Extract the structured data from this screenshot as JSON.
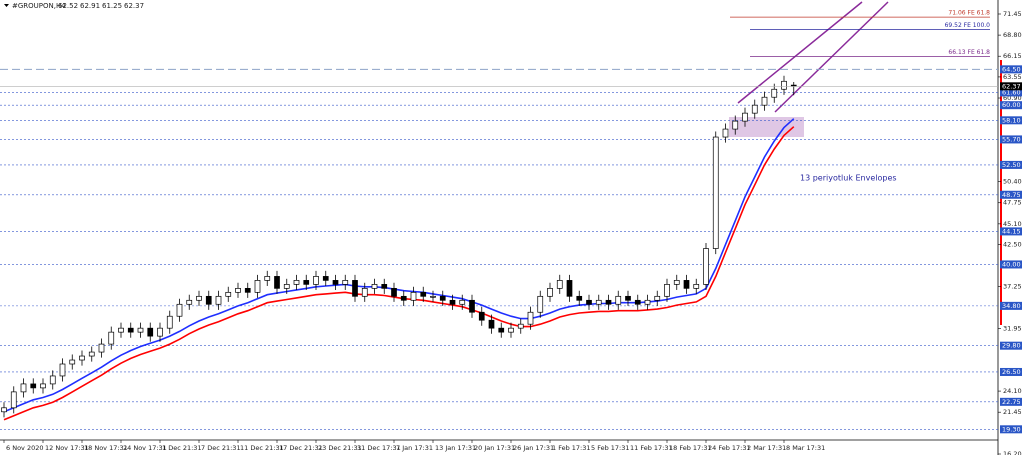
{
  "chart_data": {
    "type": "candlestick",
    "title": "#GROUPON,H4",
    "annotation": "13 periyotluk Envelopes",
    "categories": [
      "6 Nov 2020",
      null,
      null,
      null,
      "12 Nov 17:31",
      null,
      null,
      null,
      "18 Nov 17:31",
      null,
      null,
      null,
      "24 Nov 17:31",
      null,
      null,
      null,
      "1 Dec 21:31",
      null,
      null,
      null,
      "7 Dec 21:31",
      null,
      null,
      null,
      "11 Dec 21:31",
      null,
      null,
      null,
      "17 Dec 21:31",
      null,
      null,
      null,
      "23 Dec 21:31",
      null,
      null,
      null,
      "31 Dec 17:31",
      null,
      null,
      null,
      "7 Jan 17:31",
      null,
      null,
      null,
      "13 Jan 17:31",
      null,
      null,
      null,
      "20 Jan 17:31",
      null,
      null,
      null,
      "26 Jan 17:31",
      null,
      null,
      null,
      "1 Feb 17:31",
      null,
      null,
      null,
      "5 Feb 17:31",
      null,
      null,
      null,
      "11 Feb 17:31",
      null,
      null,
      null,
      "18 Feb 17:31",
      null,
      null,
      null,
      "24 Feb 17:31",
      null,
      null,
      null,
      "2 Mar 17:31",
      null,
      null,
      null,
      "8 Mar 17:31",
      null
    ],
    "open": [
      21.5,
      22,
      24,
      25,
      24.5,
      25,
      26,
      27.5,
      28,
      28.5,
      29,
      30,
      31.5,
      32,
      31.5,
      32,
      31,
      32,
      33.5,
      35,
      35.5,
      36,
      35,
      36,
      36.5,
      37,
      36.5,
      38,
      38.5,
      37,
      37.5,
      38,
      37.5,
      38.5,
      38,
      37.5,
      38,
      36,
      37,
      37.5,
      37,
      36,
      35.5,
      36.5,
      36,
      36,
      35.5,
      35,
      35.5,
      34,
      33,
      32,
      31.5,
      32,
      32.5,
      34,
      36,
      37,
      38,
      36,
      35.5,
      35,
      35.5,
      35,
      36,
      35.5,
      35,
      35.5,
      36,
      37.5,
      38,
      37,
      37.5,
      42,
      56,
      57,
      58,
      59,
      60,
      61,
      62,
      62.52
    ],
    "high": [
      22.7,
      24.7,
      25.7,
      25.7,
      25.7,
      26.7,
      28.2,
      28.7,
      29.2,
      29.7,
      30.7,
      32.2,
      32.7,
      32.7,
      32.7,
      32.7,
      32.7,
      34.2,
      35.7,
      36.2,
      36.7,
      36.7,
      36.7,
      37.2,
      37.7,
      37.7,
      38.7,
      39.2,
      39.2,
      38.2,
      38.7,
      38.7,
      39.2,
      39.2,
      38.7,
      38.7,
      38.7,
      37.7,
      38.2,
      38.2,
      37.7,
      36.7,
      37.2,
      37.2,
      36.7,
      36.7,
      36.2,
      36.2,
      36.2,
      34.7,
      33.7,
      32.7,
      32.7,
      33.2,
      34.7,
      36.7,
      37.7,
      38.7,
      38.7,
      36.7,
      36.2,
      36.2,
      36.2,
      36.7,
      36.7,
      36.2,
      36.2,
      36.7,
      38.2,
      38.7,
      38.7,
      38.2,
      42.7,
      56.7,
      57.7,
      58.7,
      59.7,
      60.7,
      61.7,
      62.7,
      63.7,
      62.91
    ],
    "low": [
      20.8,
      21.3,
      23.3,
      23.8,
      23.8,
      24.3,
      25.3,
      26.8,
      27.3,
      27.8,
      28.3,
      29.3,
      30.8,
      30.8,
      30.8,
      30.3,
      30.3,
      31.3,
      32.8,
      34.3,
      34.8,
      34.3,
      34.3,
      35.3,
      35.8,
      35.8,
      35.8,
      37.3,
      36.3,
      36.3,
      36.8,
      36.8,
      36.8,
      37.3,
      36.8,
      36.8,
      35.3,
      35.3,
      36.3,
      36.3,
      35.3,
      34.8,
      34.8,
      35.3,
      35.3,
      34.8,
      34.3,
      34.3,
      33.3,
      32.3,
      31.3,
      30.8,
      30.8,
      31.3,
      31.8,
      33.3,
      35.3,
      36.3,
      35.3,
      34.8,
      34.3,
      34.3,
      34.3,
      34.3,
      34.8,
      34.3,
      34.3,
      34.8,
      35.3,
      36.8,
      36.3,
      36.3,
      36.8,
      41.3,
      55.3,
      56.3,
      57.3,
      58.3,
      59.3,
      60.3,
      61.3,
      61.25
    ],
    "close": [
      22,
      24,
      25,
      24.5,
      25,
      26,
      27.5,
      28,
      28.5,
      29,
      30,
      31.5,
      32,
      31.5,
      32,
      31,
      32,
      33.5,
      35,
      35.5,
      36,
      35,
      36,
      36.5,
      37,
      36.5,
      38,
      38.5,
      37,
      37.5,
      38,
      37.5,
      38.5,
      38,
      37.5,
      38,
      36,
      37,
      37.5,
      37,
      36,
      35.5,
      36.5,
      36,
      36,
      35.5,
      35,
      35.5,
      34,
      33,
      32,
      31.5,
      32,
      32.5,
      34,
      36,
      37,
      38,
      36,
      35.5,
      35,
      35.5,
      35,
      36,
      35.5,
      35,
      35.5,
      36,
      37.5,
      38,
      37,
      37.5,
      42,
      56,
      57,
      58,
      59,
      60,
      61,
      62,
      63,
      62.37
    ],
    "series": [
      {
        "color": "#1f2fff",
        "values": [
          21.5,
          22,
          22.5,
          23,
          23.3,
          23.7,
          24.3,
          25,
          25.7,
          26.4,
          27.1,
          27.9,
          28.6,
          29.2,
          29.7,
          30.1,
          30.5,
          31,
          31.6,
          32.3,
          32.9,
          33.4,
          33.8,
          34.3,
          34.8,
          35.2,
          35.7,
          36.2,
          36.4,
          36.6,
          36.8,
          37,
          37.2,
          37.3,
          37.4,
          37.5,
          37.3,
          37.2,
          37.2,
          37.1,
          36.9,
          36.7,
          36.6,
          36.5,
          36.3,
          36.1,
          35.9,
          35.7,
          35.3,
          34.9,
          34.4,
          33.9,
          33.5,
          33.2,
          33.2,
          33.5,
          33.9,
          34.4,
          34.7,
          34.9,
          35,
          35.1,
          35.1,
          35.2,
          35.2,
          35.2,
          35.3,
          35.4,
          35.6,
          35.9,
          36.1,
          36.3,
          37,
          39.5,
          42.5,
          45.5,
          48.5,
          51,
          53.5,
          55.5,
          57.2,
          58.3
        ]
      },
      {
        "color": "#ff0000",
        "values": [
          20.5,
          21,
          21.5,
          22,
          22.3,
          22.7,
          23.3,
          24,
          24.7,
          25.4,
          26.1,
          26.9,
          27.6,
          28.2,
          28.7,
          29.1,
          29.5,
          30,
          30.6,
          31.3,
          31.9,
          32.4,
          32.8,
          33.3,
          33.8,
          34.2,
          34.7,
          35.2,
          35.4,
          35.6,
          35.8,
          36,
          36.2,
          36.3,
          36.4,
          36.5,
          36.3,
          36.2,
          36.2,
          36.1,
          35.9,
          35.7,
          35.6,
          35.5,
          35.3,
          35.1,
          34.9,
          34.7,
          34.3,
          33.9,
          33.4,
          32.9,
          32.5,
          32.2,
          32.2,
          32.5,
          32.9,
          33.4,
          33.7,
          33.9,
          34,
          34.1,
          34.1,
          34.2,
          34.2,
          34.2,
          34.3,
          34.4,
          34.6,
          34.9,
          35.1,
          35.3,
          36,
          38.5,
          41.5,
          44.5,
          47.5,
          50,
          52.5,
          54.5,
          56.2,
          57.3
        ]
      }
    ],
    "ylim": [
      16.2,
      71.45
    ],
    "yticks": [
      {
        "value": 71.45,
        "label": "71.45"
      },
      {
        "value": 68.8,
        "label": "68.80"
      },
      {
        "value": 66.15,
        "label": "66.15"
      },
      {
        "value": 63.55,
        "label": "63.55"
      },
      {
        "value": 60.9,
        "label": "60.90"
      },
      {
        "value": 50.4,
        "label": "50.40"
      },
      {
        "value": 47.75,
        "label": "47.75"
      },
      {
        "value": 45.1,
        "label": "45.10"
      },
      {
        "value": 42.5,
        "label": "42.50"
      },
      {
        "value": 37.25,
        "label": "37.25"
      },
      {
        "value": 31.95,
        "label": "31.95"
      },
      {
        "value": 24.1,
        "label": "24.10"
      },
      {
        "value": 21.45,
        "label": "21.45"
      },
      {
        "value": 16.2,
        "label": "16.20"
      }
    ],
    "levels": [
      {
        "value": 64.5,
        "label": "64.50"
      },
      {
        "value": 61.6,
        "label": "61.60"
      },
      {
        "value": 60,
        "label": "60.00"
      },
      {
        "value": 58.1,
        "label": "58.10"
      },
      {
        "value": 55.7,
        "label": "55.70"
      },
      {
        "value": 52.5,
        "label": "52.50"
      },
      {
        "value": 48.75,
        "label": "48.75"
      },
      {
        "value": 44.15,
        "label": "44.15"
      },
      {
        "value": 40,
        "label": "40.00"
      },
      {
        "value": 34.8,
        "label": "34.80"
      },
      {
        "value": 29.8,
        "label": "29.80"
      },
      {
        "value": 26.5,
        "label": "26.50"
      },
      {
        "value": 22.75,
        "label": "22.75"
      },
      {
        "value": 19.3,
        "label": "19.30"
      }
    ],
    "fibo": [
      {
        "value": 71.06,
        "label": "71.06 FE 61.8",
        "color": "#c0392b"
      },
      {
        "value": 69.52,
        "label": "69.52 FE 100.0",
        "color": "#2a2aa0"
      },
      {
        "value": 66.13,
        "label": "66.13 FE 61.8",
        "color": "#7a2a8a"
      }
    ],
    "up_color": "#ffffff",
    "down_color": "#000000"
  }
}
